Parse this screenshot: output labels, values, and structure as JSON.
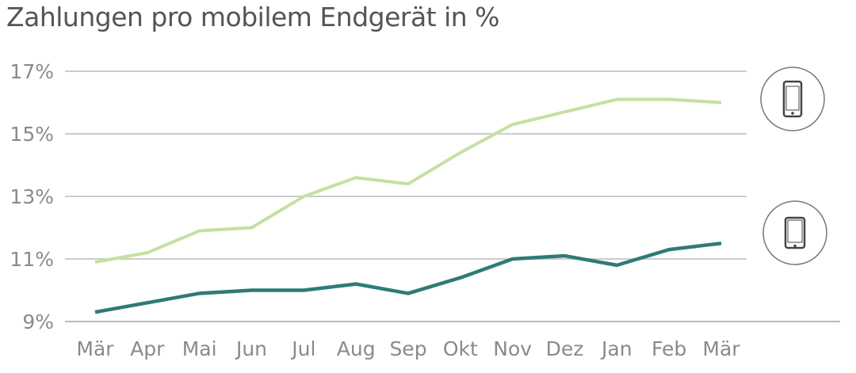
{
  "chart_data": {
    "type": "line",
    "title": "Zahlungen pro mobilem Endgerät in %",
    "categories": [
      "Mär",
      "Apr",
      "Mai",
      "Jun",
      "Jul",
      "Aug",
      "Sep",
      "Okt",
      "Nov",
      "Dez",
      "Jan",
      "Feb",
      "Mär"
    ],
    "yticks": [
      "9%",
      "11%",
      "13%",
      "15%",
      "17%"
    ],
    "ylim": [
      9,
      17
    ],
    "grid": true,
    "series": [
      {
        "icon": "smartphone-icon",
        "color": "#c5e0a0",
        "values": [
          10.9,
          11.2,
          11.9,
          12.0,
          13.0,
          13.6,
          13.4,
          14.4,
          15.3,
          15.7,
          16.1,
          16.1,
          16.0
        ]
      },
      {
        "icon": "tablet-icon",
        "color": "#2e7b78",
        "values": [
          9.3,
          9.6,
          9.9,
          10.0,
          10.0,
          10.2,
          9.9,
          10.4,
          11.0,
          11.1,
          10.8,
          11.3,
          11.5
        ]
      }
    ]
  }
}
